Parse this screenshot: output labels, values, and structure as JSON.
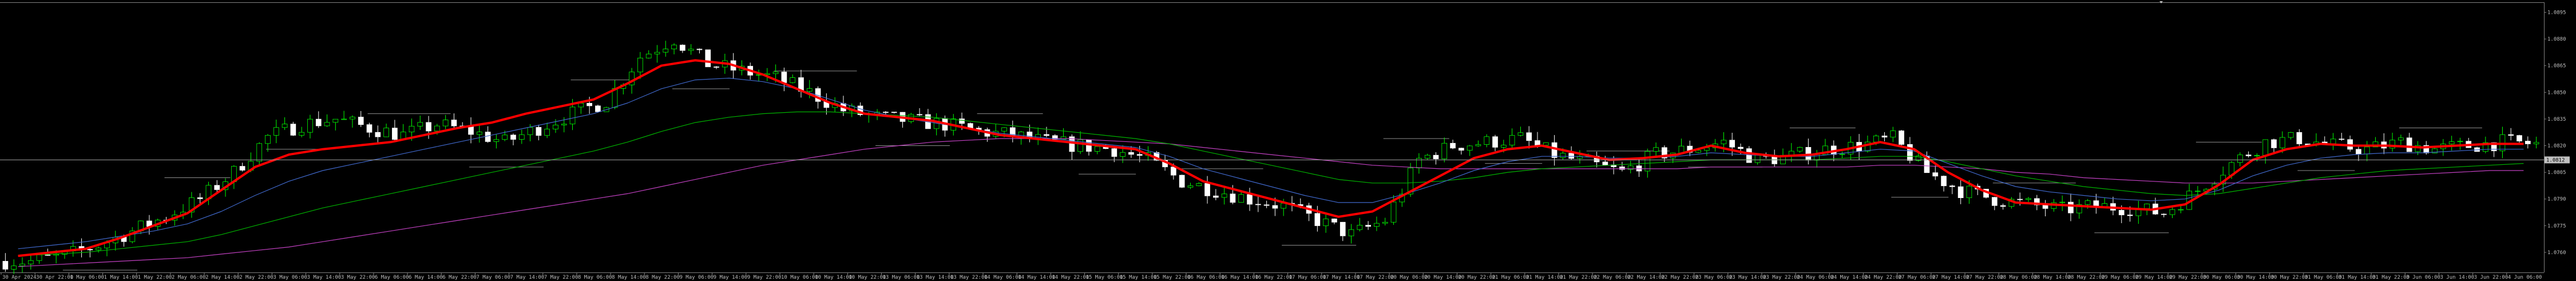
{
  "window": {
    "title": "",
    "background": "#000000",
    "axis_color": "#9e9e9e",
    "bull_color": "#00ff00",
    "bear_color": "#ffffff"
  },
  "chart_data": {
    "type": "candlestick",
    "title": "",
    "xlabel": "",
    "ylabel": "",
    "ylim": [
      1.075,
      1.09
    ],
    "x_ticks": [
      "30 Apr 2024",
      "30 Apr 22:00",
      "1 May 06:00",
      "1 May 14:00",
      "1 May 22:00",
      "2 May 06:00",
      "2 May 14:00",
      "2 May 22:00",
      "3 May 06:00",
      "3 May 14:00",
      "3 May 22:00",
      "6 May 06:00",
      "6 May 14:00",
      "6 May 22:00",
      "7 May 06:00",
      "7 May 14:00",
      "7 May 22:00",
      "8 May 06:00",
      "8 May 14:00",
      "8 May 22:00",
      "9 May 06:00",
      "9 May 14:00",
      "9 May 22:00",
      "10 May 06:00",
      "10 May 14:00",
      "10 May 22:00",
      "13 May 06:00",
      "13 May 14:00",
      "13 May 22:00",
      "14 May 06:00",
      "14 May 14:00",
      "14 May 22:00",
      "15 May 06:00",
      "15 May 14:00",
      "15 May 22:00",
      "16 May 06:00",
      "16 May 14:00",
      "16 May 22:00",
      "17 May 06:00",
      "17 May 14:00",
      "17 May 22:00",
      "20 May 06:00",
      "20 May 14:00",
      "20 May 22:00",
      "21 May 06:00",
      "21 May 14:00",
      "21 May 22:00",
      "22 May 06:00",
      "22 May 14:00",
      "22 May 22:00",
      "23 May 06:00",
      "23 May 14:00",
      "23 May 22:00",
      "24 May 06:00",
      "24 May 14:00",
      "24 May 22:00",
      "27 May 06:00",
      "27 May 14:00",
      "27 May 22:00",
      "28 May 06:00",
      "28 May 14:00",
      "28 May 22:00",
      "29 May 06:00",
      "29 May 14:00",
      "29 May 22:00",
      "30 May 06:00",
      "30 May 14:00",
      "30 May 22:00",
      "31 May 06:00",
      "31 May 14:00",
      "31 May 22:00",
      "3 Jun 06:00",
      "3 Jun 14:00",
      "3 Jun 22:00",
      "4 Jun 06:00"
    ],
    "y_ticks": [
      "1.0895",
      "1.0880",
      "1.0865",
      "1.0850",
      "1.0835",
      "1.0820",
      "1.0805",
      "1.0790",
      "1.0775",
      "1.0760"
    ],
    "current_price": "1.0812",
    "grid": false,
    "series": [
      {
        "name": "",
        "color": "#ff0000",
        "values": [
          1.0758,
          1.076,
          1.0762,
          1.0768,
          1.0775,
          1.0782,
          1.0795,
          1.0808,
          1.0815,
          1.0818,
          1.082,
          1.0822,
          1.0826,
          1.083,
          1.0833,
          1.0838,
          1.0842,
          1.0846,
          1.0855,
          1.0865,
          1.0868,
          1.0866,
          1.086,
          1.0852,
          1.0844,
          1.0838,
          1.0836,
          1.0834,
          1.083,
          1.0826,
          1.0824,
          1.0822,
          1.082,
          1.0818,
          1.081,
          1.08,
          1.0795,
          1.079,
          1.0785,
          1.078,
          1.0783,
          1.0793,
          1.0803,
          1.0813,
          1.0818,
          1.082,
          1.0816,
          1.0812,
          1.0813,
          1.0815,
          1.082,
          1.0816,
          1.0814,
          1.0815,
          1.0818,
          1.0822,
          1.0818,
          1.0805,
          1.0795,
          1.0788,
          1.0787,
          1.0786,
          1.0785,
          1.0784,
          1.0787,
          1.0798,
          1.0812,
          1.0818,
          1.0821,
          1.082,
          1.082,
          1.0819,
          1.082,
          1.0821,
          1.0821
        ]
      },
      {
        "name": "",
        "color": "#3f67c9",
        "values": [
          1.0762,
          1.0764,
          1.0766,
          1.0769,
          1.0772,
          1.0776,
          1.0783,
          1.0792,
          1.08,
          1.0806,
          1.081,
          1.0814,
          1.0818,
          1.0822,
          1.0826,
          1.083,
          1.0834,
          1.0838,
          1.0844,
          1.0852,
          1.0857,
          1.0858,
          1.0856,
          1.0852,
          1.0846,
          1.084,
          1.0836,
          1.0833,
          1.083,
          1.0827,
          1.0825,
          1.0823,
          1.0821,
          1.0819,
          1.0814,
          1.0807,
          1.0802,
          1.0797,
          1.0792,
          1.0788,
          1.0788,
          1.0793,
          1.0799,
          1.0806,
          1.0811,
          1.0814,
          1.0814,
          1.0813,
          1.0813,
          1.0814,
          1.0816,
          1.0815,
          1.0814,
          1.0814,
          1.0816,
          1.0818,
          1.0817,
          1.081,
          1.0803,
          1.0797,
          1.0794,
          1.0792,
          1.079,
          1.0789,
          1.079,
          1.0795,
          1.0803,
          1.0809,
          1.0813,
          1.0815,
          1.0816,
          1.0816,
          1.0817,
          1.0818,
          1.0818
        ]
      },
      {
        "name": "",
        "color": "#00b000",
        "values": [
          1.0758,
          1.0759,
          1.076,
          1.0762,
          1.0764,
          1.0766,
          1.077,
          1.0775,
          1.078,
          1.0785,
          1.0789,
          1.0793,
          1.0797,
          1.0801,
          1.0805,
          1.0809,
          1.0813,
          1.0817,
          1.0822,
          1.0828,
          1.0833,
          1.0836,
          1.0838,
          1.0839,
          1.0839,
          1.0838,
          1.0837,
          1.0836,
          1.0834,
          1.0832,
          1.083,
          1.0828,
          1.0826,
          1.0824,
          1.0821,
          1.0817,
          1.0813,
          1.0809,
          1.0805,
          1.0801,
          1.0799,
          1.0799,
          1.08,
          1.0802,
          1.0805,
          1.0807,
          1.0808,
          1.0809,
          1.081,
          1.0811,
          1.0812,
          1.0812,
          1.0812,
          1.0812,
          1.0813,
          1.0814,
          1.0814,
          1.0811,
          1.0807,
          1.0803,
          1.08,
          1.0797,
          1.0795,
          1.0793,
          1.0792,
          1.0793,
          1.0796,
          1.0799,
          1.0802,
          1.0804,
          1.0806,
          1.0807,
          1.0808,
          1.0809,
          1.081
        ]
      },
      {
        "name": "",
        "color": "#c040c0",
        "values": [
          1.0752,
          1.0753,
          1.0754,
          1.0755,
          1.0756,
          1.0757,
          1.0759,
          1.0761,
          1.0763,
          1.0766,
          1.0769,
          1.0772,
          1.0775,
          1.0778,
          1.0781,
          1.0784,
          1.0787,
          1.079,
          1.0793,
          1.0797,
          1.0801,
          1.0805,
          1.0809,
          1.0812,
          1.0815,
          1.0818,
          1.082,
          1.0822,
          1.0823,
          1.0824,
          1.0824,
          1.0824,
          1.0823,
          1.0822,
          1.0821,
          1.0819,
          1.0817,
          1.0815,
          1.0813,
          1.0811,
          1.0809,
          1.0808,
          1.0807,
          1.0807,
          1.0807,
          1.0807,
          1.0807,
          1.0807,
          1.0807,
          1.0807,
          1.0808,
          1.0808,
          1.0808,
          1.0808,
          1.0808,
          1.0809,
          1.0809,
          1.0808,
          1.0807,
          1.0805,
          1.0804,
          1.0802,
          1.0801,
          1.08,
          1.0799,
          1.0799,
          1.0799,
          1.08,
          1.0801,
          1.0802,
          1.0803,
          1.0804,
          1.0805,
          1.0806,
          1.0806
        ]
      }
    ],
    "close": [
      1.0755,
      1.0758,
      1.0764,
      1.0772,
      1.078,
      1.079,
      1.0805,
      1.0825,
      1.0832,
      1.0835,
      1.083,
      1.0826,
      1.0832,
      1.0828,
      1.0822,
      1.083,
      1.0838,
      1.0845,
      1.087,
      1.088,
      1.0866,
      1.0862,
      1.0858,
      1.085,
      1.084,
      1.0836,
      1.0834,
      1.0832,
      1.0828,
      1.0826,
      1.0822,
      1.082,
      1.0818,
      1.0812,
      1.08,
      1.0795,
      1.079,
      1.0786,
      1.0778,
      1.077,
      1.0778,
      1.0812,
      1.082,
      1.0822,
      1.0824,
      1.0815,
      1.081,
      1.0805,
      1.0815,
      1.0818,
      1.0822,
      1.0812,
      1.0814,
      1.0818,
      1.082,
      1.0824,
      1.0805,
      1.0795,
      1.079,
      1.0787,
      1.0784,
      1.0786,
      1.0785,
      1.0782,
      1.0795,
      1.081,
      1.0822,
      1.0824,
      1.082,
      1.0818,
      1.0822,
      1.0818,
      1.082,
      1.0822,
      1.0821
    ]
  }
}
